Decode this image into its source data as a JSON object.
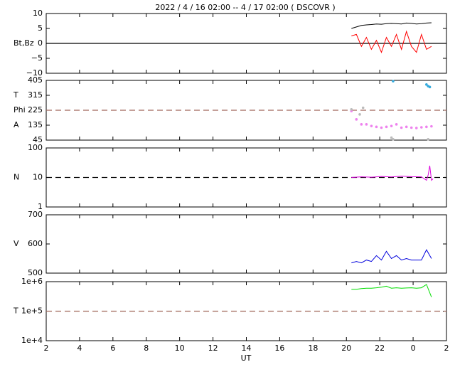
{
  "chart_data": [
    {
      "type": "line",
      "title": "2022 /  4 / 16   02:00 -- 4 / 17   02:00 ( DSCOVR )",
      "ylabel": [
        "Bt,Bz"
      ],
      "xlim": [
        2,
        26
      ],
      "ylim": [
        -10,
        10
      ],
      "yticks": [
        {
          "value": -10,
          "label": "−10"
        },
        {
          "value": -5,
          "label": "−5"
        },
        0,
        5,
        10
      ],
      "hlines": [
        {
          "value": 0,
          "color": "#000000",
          "dash": false
        }
      ],
      "series": [
        {
          "color": "#000000",
          "x": [
            20.3,
            20.6,
            20.9,
            21.2,
            21.5,
            21.8,
            22.1,
            22.4,
            22.7,
            23.0,
            23.3,
            23.6,
            23.9,
            24.2,
            24.5,
            24.8,
            25.1
          ],
          "values": [
            5,
            5.5,
            6,
            6.2,
            6.3,
            6.5,
            6.4,
            6.6,
            6.7,
            6.6,
            6.5,
            6.8,
            6.7,
            6.5,
            6.6,
            6.8,
            6.9
          ]
        },
        {
          "color": "#ff0000",
          "x": [
            20.3,
            20.6,
            20.9,
            21.2,
            21.5,
            21.8,
            22.1,
            22.4,
            22.7,
            23.0,
            23.3,
            23.6,
            23.9,
            24.2,
            24.5,
            24.8,
            25.1
          ],
          "values": [
            2.5,
            3,
            -1,
            2,
            -2,
            1,
            -3,
            2,
            -1,
            3,
            -2,
            4,
            -1,
            -3,
            3,
            -2,
            -1
          ]
        }
      ]
    },
    {
      "type": "scatter",
      "ylabel": [
        "T",
        "Phi",
        "A"
      ],
      "xlim": [
        2,
        26
      ],
      "ylim": [
        45,
        405
      ],
      "yticks": [
        45,
        135,
        225,
        315,
        405
      ],
      "hlines": [
        {
          "value": 225,
          "color": "#a0665a",
          "dash": true
        }
      ],
      "series": [
        {
          "color": "#ee82ee",
          "x": [
            20.3,
            20.6,
            20.9,
            21.2,
            21.5,
            21.8,
            22.1,
            22.4,
            22.7,
            23.0,
            23.3,
            23.6,
            23.9,
            24.2,
            24.5,
            24.8,
            25.1
          ],
          "values": [
            220,
            170,
            140,
            140,
            130,
            125,
            120,
            125,
            130,
            140,
            120,
            125,
            120,
            118,
            122,
            125,
            128
          ]
        },
        {
          "color": "#bbbbbb",
          "x": [
            20.3,
            20.8,
            21.0,
            22.7,
            22.8,
            24.9
          ],
          "values": [
            230,
            200,
            240,
            60,
            50,
            50
          ]
        },
        {
          "color": "#33aadd",
          "x": [
            22.8,
            24.8,
            24.9,
            25.0
          ],
          "values": [
            400,
            380,
            370,
            365
          ]
        }
      ]
    },
    {
      "type": "line",
      "ylabel": [
        "N"
      ],
      "log": true,
      "xlim": [
        2,
        26
      ],
      "ylim": [
        1,
        100
      ],
      "yticks": [
        1,
        10,
        100
      ],
      "hlines": [
        {
          "value": 10,
          "color": "#000000",
          "dash": true
        }
      ],
      "series": [
        {
          "color": "#dd00dd",
          "x": [
            20.3,
            20.9,
            21.5,
            22.1,
            22.7,
            23.3,
            23.9,
            24.5,
            24.8,
            24.9,
            25.0,
            25.1,
            25.2
          ],
          "values": [
            10,
            10.5,
            10.2,
            10.8,
            10.4,
            11,
            10.6,
            10.5,
            8,
            12,
            25,
            8,
            9
          ]
        }
      ]
    },
    {
      "type": "line",
      "ylabel": [
        "V"
      ],
      "xlim": [
        2,
        26
      ],
      "ylim": [
        500,
        700
      ],
      "yticks": [
        500,
        600,
        700
      ],
      "hlines": [],
      "series": [
        {
          "color": "#0000dd",
          "x": [
            20.3,
            20.6,
            20.9,
            21.2,
            21.5,
            21.8,
            22.1,
            22.4,
            22.7,
            23.0,
            23.3,
            23.6,
            23.9,
            24.2,
            24.5,
            24.8,
            25.1
          ],
          "values": [
            535,
            540,
            535,
            545,
            540,
            560,
            545,
            575,
            550,
            560,
            545,
            550,
            545,
            545,
            545,
            580,
            550
          ]
        }
      ]
    },
    {
      "type": "line",
      "ylabel": [
        "T"
      ],
      "log": true,
      "xlabel": "UT",
      "xlim": [
        2,
        26
      ],
      "ylim": [
        10000,
        1000000
      ],
      "xticks": [
        2,
        4,
        6,
        8,
        10,
        12,
        14,
        16,
        18,
        20,
        22,
        {
          "value": 24,
          "label": "0"
        },
        {
          "value": 26,
          "label": "2"
        }
      ],
      "yticks": [
        {
          "value": 10000,
          "label": "1e+4"
        },
        {
          "value": 100000,
          "label": "1e+5"
        },
        {
          "value": 1000000,
          "label": "1e+6"
        }
      ],
      "hlines": [
        {
          "value": 100000,
          "color": "#a0665a",
          "dash": true
        }
      ],
      "series": [
        {
          "color": "#00dd00",
          "x": [
            20.3,
            20.6,
            20.9,
            21.2,
            21.5,
            21.8,
            22.1,
            22.4,
            22.7,
            23.0,
            23.3,
            23.6,
            23.9,
            24.2,
            24.5,
            24.8,
            25.1
          ],
          "values": [
            550000,
            550000,
            580000,
            600000,
            600000,
            620000,
            650000,
            700000,
            600000,
            620000,
            600000,
            610000,
            620000,
            600000,
            620000,
            800000,
            300000
          ]
        }
      ]
    }
  ]
}
